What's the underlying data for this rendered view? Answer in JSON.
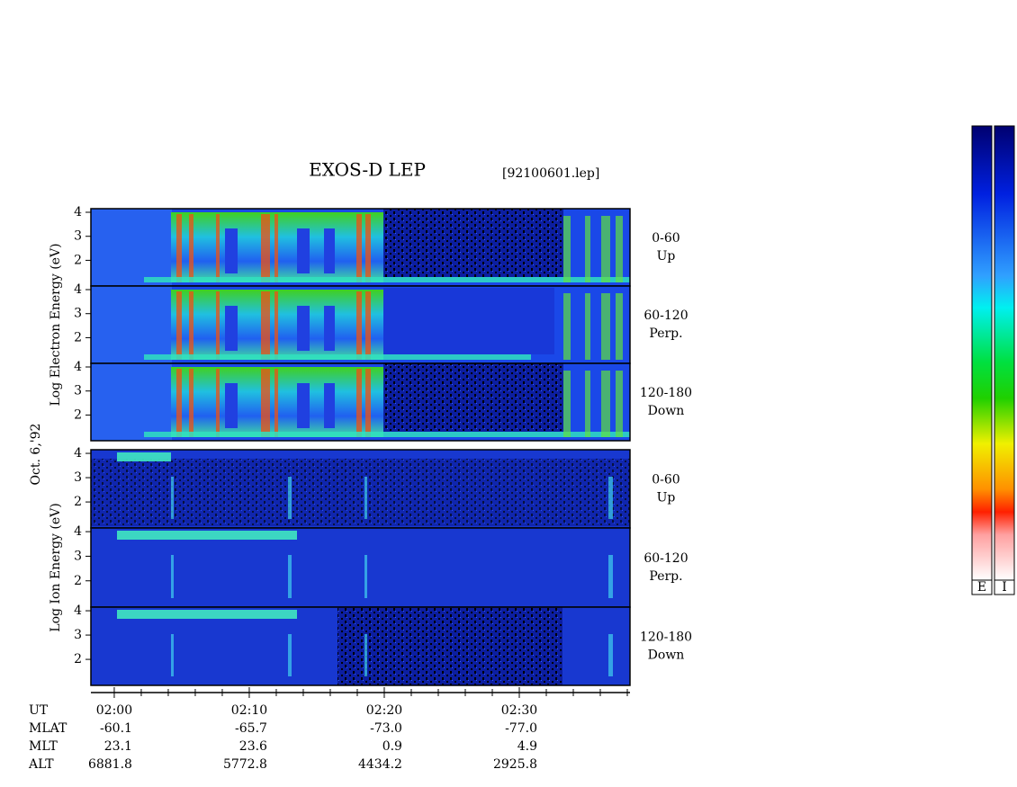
{
  "chart_data": {
    "type": "spectrogram",
    "title": "EXOS-D LEP",
    "subtitle": "[92100601.lep]",
    "date_label": "Oct. 6,'92",
    "ylabels": [
      "Log Electron Energy (eV)",
      "Log Ion Energy (eV)"
    ],
    "panel_labels": [
      [
        "0-60",
        "Up"
      ],
      [
        "60-120",
        "Perp."
      ],
      [
        "120-180",
        "Down"
      ]
    ],
    "ylim": [
      0.93,
      4.15
    ],
    "yticks": [
      2,
      3,
      4
    ],
    "xlim": [
      -1.73,
      38.2
    ],
    "xticks": [
      {
        "value": 0,
        "label": "02:00"
      },
      {
        "value": 10,
        "label": "02:10"
      },
      {
        "value": 20,
        "label": "02:20"
      },
      {
        "value": 30,
        "label": "02:30"
      }
    ],
    "xminorticks": [
      2,
      4,
      6,
      8,
      12,
      14,
      16,
      18,
      22,
      24,
      26,
      28,
      32,
      34,
      36,
      38
    ],
    "orbit": [
      {
        "label": "UT"
      },
      {
        "label": "MLAT",
        "values": [
          "-60.1",
          "-65.7",
          "-73.0",
          "-77.0"
        ]
      },
      {
        "label": "MLT",
        "values": [
          "23.1",
          "23.6",
          "0.9",
          "4.9"
        ]
      },
      {
        "label": "ALT",
        "values": [
          "6881.8",
          "5772.8",
          "4434.2",
          "2925.8"
        ]
      }
    ],
    "colorbar_labels": [
      "E",
      "I"
    ]
  }
}
